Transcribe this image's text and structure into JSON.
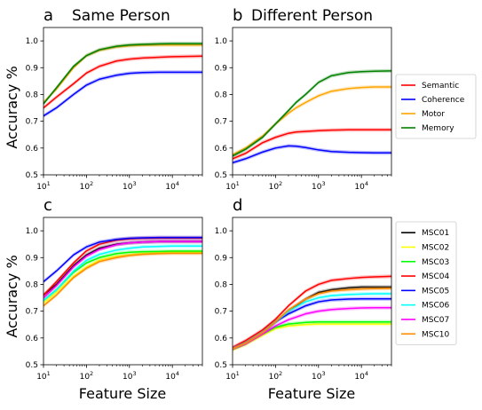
{
  "figure": {
    "ylabel": "Accuracy %",
    "xlabel": "Feature Size"
  },
  "chart_data": [
    {
      "id": "a",
      "panel_label": "a",
      "title": "Same Person",
      "type": "line",
      "xscale": "log",
      "xlim": [
        10,
        50000
      ],
      "ylim": [
        0.5,
        1.05
      ],
      "xticks": [
        10,
        100,
        1000,
        10000
      ],
      "yticks": [
        0.5,
        0.6,
        0.7,
        0.8,
        0.9,
        1.0
      ],
      "ytick_labels": [
        "0.5",
        "0.6",
        "0.7",
        "0.8",
        "0.9",
        "1.0"
      ],
      "show_ylabel": true,
      "show_xlabel": false,
      "legend": "group1",
      "x": [
        10,
        20,
        50,
        100,
        200,
        500,
        1000,
        2000,
        5000,
        10000,
        20000,
        50000
      ],
      "series": [
        {
          "name": "Semantic",
          "color": "#ff0000",
          "values": [
            0.75,
            0.79,
            0.84,
            0.88,
            0.905,
            0.925,
            0.932,
            0.936,
            0.939,
            0.941,
            0.942,
            0.943
          ]
        },
        {
          "name": "Coherence",
          "color": "#0000ff",
          "values": [
            0.72,
            0.75,
            0.8,
            0.835,
            0.857,
            0.872,
            0.879,
            0.882,
            0.883,
            0.883,
            0.883,
            0.883
          ]
        },
        {
          "name": "Motor",
          "color": "#ffa500",
          "values": [
            0.77,
            0.82,
            0.9,
            0.945,
            0.965,
            0.978,
            0.982,
            0.984,
            0.985,
            0.985,
            0.985,
            0.985
          ]
        },
        {
          "name": "Memory",
          "color": "#008000",
          "values": [
            0.765,
            0.825,
            0.905,
            0.945,
            0.967,
            0.98,
            0.985,
            0.987,
            0.989,
            0.99,
            0.99,
            0.99
          ]
        }
      ]
    },
    {
      "id": "b",
      "panel_label": "b",
      "title": "Different Person",
      "type": "line",
      "xscale": "log",
      "xlim": [
        10,
        50000
      ],
      "ylim": [
        0.5,
        1.05
      ],
      "xticks": [
        10,
        100,
        1000,
        10000
      ],
      "yticks": [
        0.5,
        0.6,
        0.7,
        0.8,
        0.9,
        1.0
      ],
      "ytick_labels": [
        "0.5",
        "0.6",
        "0.7",
        "0.8",
        "0.9",
        "1.0"
      ],
      "show_ylabel": false,
      "show_xlabel": false,
      "legend": "group1",
      "x": [
        10,
        20,
        50,
        100,
        200,
        300,
        500,
        1000,
        2000,
        5000,
        10000,
        20000,
        50000
      ],
      "series": [
        {
          "name": "Semantic",
          "color": "#ff0000",
          "values": [
            0.56,
            0.58,
            0.62,
            0.64,
            0.655,
            0.66,
            0.662,
            0.665,
            0.667,
            0.668,
            0.668,
            0.668,
            0.668
          ]
        },
        {
          "name": "Coherence",
          "color": "#0000ff",
          "values": [
            0.545,
            0.56,
            0.585,
            0.6,
            0.608,
            0.607,
            0.602,
            0.593,
            0.587,
            0.584,
            0.583,
            0.582,
            0.582
          ]
        },
        {
          "name": "Motor",
          "color": "#ffa500",
          "values": [
            0.575,
            0.6,
            0.645,
            0.69,
            0.73,
            0.75,
            0.77,
            0.795,
            0.812,
            0.822,
            0.826,
            0.828,
            0.828
          ]
        },
        {
          "name": "Memory",
          "color": "#008000",
          "values": [
            0.57,
            0.595,
            0.64,
            0.69,
            0.74,
            0.77,
            0.8,
            0.845,
            0.87,
            0.882,
            0.885,
            0.887,
            0.888
          ]
        }
      ]
    },
    {
      "id": "c",
      "panel_label": "c",
      "title": "",
      "type": "line",
      "xscale": "log",
      "xlim": [
        10,
        50000
      ],
      "ylim": [
        0.5,
        1.05
      ],
      "xticks": [
        10,
        100,
        1000,
        10000
      ],
      "yticks": [
        0.5,
        0.6,
        0.7,
        0.8,
        0.9,
        1.0
      ],
      "ytick_labels": [
        "0.5",
        "0.6",
        "0.7",
        "0.8",
        "0.9",
        "1.0"
      ],
      "show_ylabel": true,
      "show_xlabel": true,
      "legend": "group2",
      "x": [
        10,
        20,
        50,
        100,
        200,
        500,
        1000,
        2000,
        5000,
        10000,
        20000,
        50000
      ],
      "series": [
        {
          "name": "MSC01",
          "color": "#000000",
          "values": [
            0.76,
            0.8,
            0.87,
            0.91,
            0.935,
            0.95,
            0.955,
            0.958,
            0.96,
            0.96,
            0.96,
            0.96
          ]
        },
        {
          "name": "MSC02",
          "color": "#ffff00",
          "values": [
            0.73,
            0.77,
            0.83,
            0.865,
            0.89,
            0.905,
            0.91,
            0.915,
            0.918,
            0.92,
            0.92,
            0.92
          ]
        },
        {
          "name": "MSC03",
          "color": "#00ff00",
          "values": [
            0.74,
            0.78,
            0.845,
            0.88,
            0.9,
            0.915,
            0.92,
            0.922,
            0.923,
            0.924,
            0.924,
            0.924
          ]
        },
        {
          "name": "MSC04",
          "color": "#ff0000",
          "values": [
            0.76,
            0.81,
            0.88,
            0.925,
            0.95,
            0.965,
            0.97,
            0.972,
            0.973,
            0.973,
            0.973,
            0.973
          ]
        },
        {
          "name": "MSC05",
          "color": "#0000ff",
          "values": [
            0.81,
            0.85,
            0.91,
            0.94,
            0.958,
            0.968,
            0.972,
            0.974,
            0.975,
            0.975,
            0.975,
            0.975
          ]
        },
        {
          "name": "MSC06",
          "color": "#00ffff",
          "values": [
            0.74,
            0.78,
            0.85,
            0.89,
            0.912,
            0.928,
            0.935,
            0.94,
            0.942,
            0.943,
            0.943,
            0.943
          ]
        },
        {
          "name": "MSC07",
          "color": "#ff00ff",
          "values": [
            0.75,
            0.795,
            0.865,
            0.905,
            0.93,
            0.948,
            0.955,
            0.958,
            0.96,
            0.96,
            0.96,
            0.96
          ]
        },
        {
          "name": "MSC10",
          "color": "#ff8c00",
          "values": [
            0.72,
            0.76,
            0.825,
            0.86,
            0.885,
            0.9,
            0.908,
            0.912,
            0.915,
            0.916,
            0.916,
            0.916
          ]
        }
      ]
    },
    {
      "id": "d",
      "panel_label": "d",
      "title": "",
      "type": "line",
      "xscale": "log",
      "xlim": [
        10,
        50000
      ],
      "ylim": [
        0.5,
        1.05
      ],
      "xticks": [
        10,
        100,
        1000,
        10000
      ],
      "yticks": [
        0.5,
        0.6,
        0.7,
        0.8,
        0.9,
        1.0
      ],
      "ytick_labels": [
        "0.5",
        "0.6",
        "0.7",
        "0.8",
        "0.9",
        "1.0"
      ],
      "show_ylabel": false,
      "show_xlabel": true,
      "legend": "group2",
      "x": [
        10,
        20,
        50,
        100,
        200,
        500,
        1000,
        2000,
        5000,
        10000,
        20000,
        50000
      ],
      "series": [
        {
          "name": "MSC01",
          "color": "#000000",
          "values": [
            0.56,
            0.58,
            0.62,
            0.66,
            0.7,
            0.745,
            0.77,
            0.78,
            0.787,
            0.79,
            0.79,
            0.79
          ]
        },
        {
          "name": "MSC02",
          "color": "#ffff00",
          "values": [
            0.555,
            0.575,
            0.61,
            0.635,
            0.645,
            0.65,
            0.652,
            0.652,
            0.652,
            0.652,
            0.652,
            0.652
          ]
        },
        {
          "name": "MSC03",
          "color": "#00ff00",
          "values": [
            0.56,
            0.58,
            0.615,
            0.64,
            0.652,
            0.658,
            0.66,
            0.66,
            0.66,
            0.66,
            0.66,
            0.66
          ]
        },
        {
          "name": "MSC04",
          "color": "#ff0000",
          "values": [
            0.565,
            0.59,
            0.63,
            0.67,
            0.72,
            0.775,
            0.8,
            0.815,
            0.822,
            0.826,
            0.828,
            0.83
          ]
        },
        {
          "name": "MSC05",
          "color": "#0000ff",
          "values": [
            0.56,
            0.58,
            0.62,
            0.66,
            0.69,
            0.72,
            0.735,
            0.742,
            0.745,
            0.746,
            0.746,
            0.746
          ]
        },
        {
          "name": "MSC06",
          "color": "#00ffff",
          "values": [
            0.56,
            0.58,
            0.62,
            0.66,
            0.7,
            0.735,
            0.75,
            0.758,
            0.762,
            0.764,
            0.765,
            0.765
          ]
        },
        {
          "name": "MSC07",
          "color": "#ff00ff",
          "values": [
            0.56,
            0.578,
            0.615,
            0.645,
            0.668,
            0.69,
            0.7,
            0.706,
            0.71,
            0.712,
            0.713,
            0.713
          ]
        },
        {
          "name": "MSC10",
          "color": "#ff8c00",
          "values": [
            0.56,
            0.58,
            0.62,
            0.66,
            0.705,
            0.745,
            0.765,
            0.775,
            0.78,
            0.783,
            0.784,
            0.785
          ]
        }
      ]
    }
  ],
  "legends": {
    "group1": [
      {
        "label": "Semantic",
        "color": "#ff0000"
      },
      {
        "label": "Coherence",
        "color": "#0000ff"
      },
      {
        "label": "Motor",
        "color": "#ffa500"
      },
      {
        "label": "Memory",
        "color": "#008000"
      }
    ],
    "group2": [
      {
        "label": "MSC01",
        "color": "#000000"
      },
      {
        "label": "MSC02",
        "color": "#ffff00"
      },
      {
        "label": "MSC03",
        "color": "#00ff00"
      },
      {
        "label": "MSC04",
        "color": "#ff0000"
      },
      {
        "label": "MSC05",
        "color": "#0000ff"
      },
      {
        "label": "MSC06",
        "color": "#00ffff"
      },
      {
        "label": "MSC07",
        "color": "#ff00ff"
      },
      {
        "label": "MSC10",
        "color": "#ff8c00"
      }
    ]
  }
}
